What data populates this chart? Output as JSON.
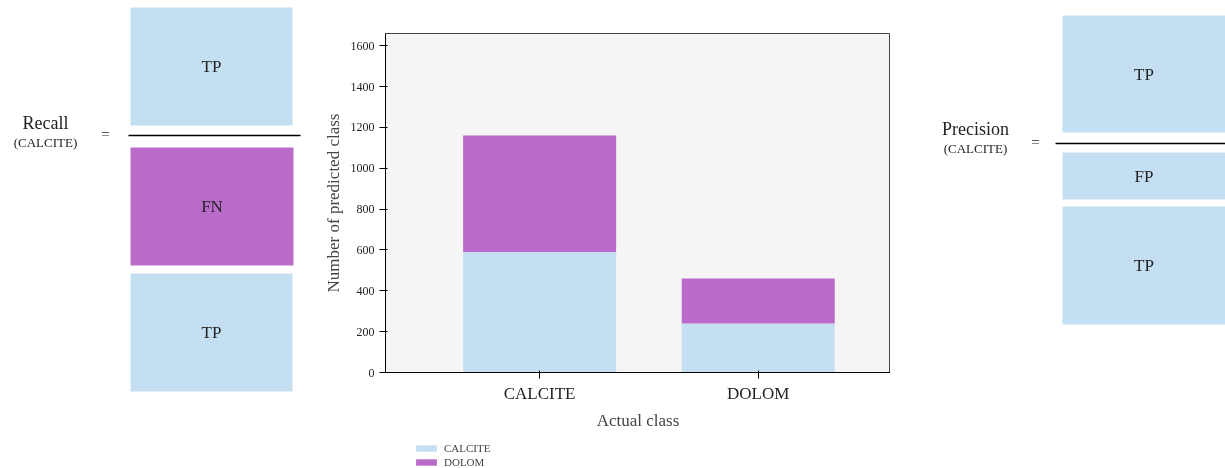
{
  "chart_data": {
    "type": "bar",
    "stacked": true,
    "xlabel": "Actual class",
    "ylabel": "Number of predicted class",
    "categories": [
      "CALCITE",
      "DOLOM"
    ],
    "series": [
      {
        "name": "CALCITE",
        "color": "#c5dff2",
        "values": [
          590,
          240
        ]
      },
      {
        "name": "DOLOM",
        "color": "#b96bc9",
        "values": [
          570,
          220
        ]
      }
    ],
    "ylim": [
      0,
      1660
    ],
    "yticks": [
      0,
      200,
      400,
      600,
      800,
      1000,
      1200,
      1400,
      1600
    ],
    "grid": false,
    "legend": "bottom",
    "annotations": [
      "Recall",
      "(CALCITE)",
      "=",
      "TP",
      "FN",
      "TP",
      "Precision",
      "(CALCITE)",
      "=",
      "TP",
      "FP",
      "TP"
    ]
  }
}
